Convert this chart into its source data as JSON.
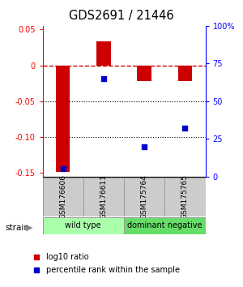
{
  "title": "GDS2691 / 21446",
  "samples": [
    "GSM176606",
    "GSM176611",
    "GSM175764",
    "GSM175765"
  ],
  "log10_ratio": [
    -0.148,
    0.033,
    -0.022,
    -0.022
  ],
  "percentile_rank": [
    5.0,
    65.0,
    20.0,
    32.0
  ],
  "bar_color": "#cc0000",
  "dot_color": "#0000cc",
  "ylim_left": [
    -0.155,
    0.055
  ],
  "ylim_right": [
    0,
    100
  ],
  "yticks_left": [
    0.05,
    0.0,
    -0.05,
    -0.1,
    -0.15
  ],
  "yticks_right": [
    100,
    75,
    50,
    25,
    0
  ],
  "ytick_labels_left": [
    "0.05",
    "0",
    "-0.05",
    "-0.10",
    "-0.15"
  ],
  "ytick_labels_right": [
    "100%",
    "75",
    "50",
    "25",
    "0"
  ],
  "groups": [
    {
      "label": "wild type",
      "samples": [
        0,
        1
      ],
      "color": "#aaffaa"
    },
    {
      "label": "dominant negative",
      "samples": [
        2,
        3
      ],
      "color": "#66dd66"
    }
  ],
  "legend": [
    {
      "label": "log10 ratio",
      "color": "#cc0000"
    },
    {
      "label": "percentile rank within the sample",
      "color": "#0000cc"
    }
  ],
  "strain_label": "strain",
  "dotted_lines": [
    -0.05,
    -0.1
  ],
  "zero_line_color": "#cc0000"
}
